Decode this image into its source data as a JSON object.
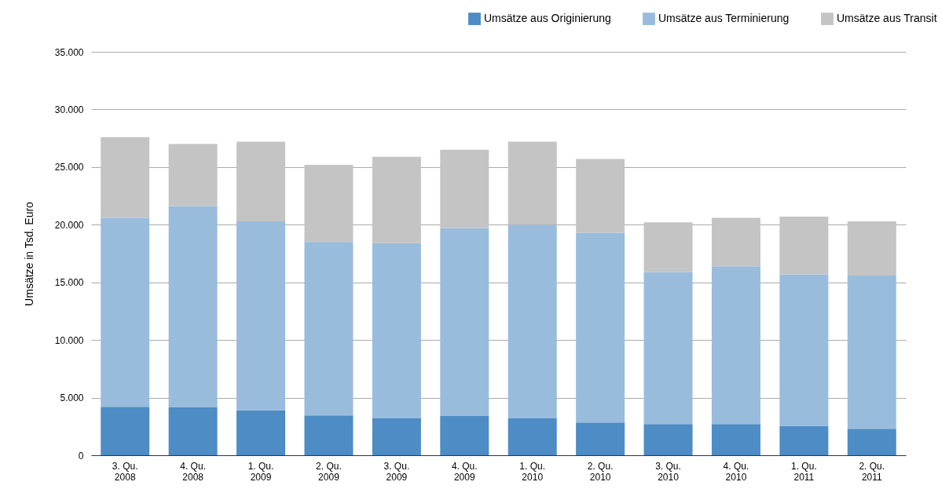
{
  "chart_data": {
    "type": "bar",
    "stacked": true,
    "ylabel": "Umsätze in Tsd. Euro",
    "categories": [
      "3. Qu. 2008",
      "4. Qu. 2008",
      "1. Qu. 2009",
      "2. Qu. 2009",
      "3. Qu. 2009",
      "4. Qu. 2009",
      "1. Qu. 2010",
      "2. Qu. 2010",
      "3. Qu. 2010",
      "4. Qu. 2010",
      "1. Qu. 2011",
      "2. Qu. 2011"
    ],
    "series": [
      {
        "name": "Umsätze aus Originierung",
        "color": "#4d8cc4",
        "values": [
          4200,
          4150,
          3900,
          3450,
          3200,
          3400,
          3200,
          2850,
          2700,
          2700,
          2550,
          2300
        ]
      },
      {
        "name": "Umsätze aus Terminierung",
        "color": "#99bcdd",
        "values": [
          16400,
          17450,
          16400,
          15050,
          15200,
          16300,
          16800,
          16450,
          13200,
          13700,
          13150,
          13300
        ]
      },
      {
        "name": "Umsätze aus Transit",
        "color": "#c4c4c4",
        "values": [
          7000,
          5400,
          6900,
          6700,
          7500,
          6800,
          7200,
          6400,
          4300,
          4200,
          5000,
          4700
        ]
      }
    ],
    "ylim": [
      0,
      35000
    ],
    "yticks": [
      0,
      {
        "value": 5000,
        "label": "5.000"
      },
      {
        "value": 10000,
        "label": "10.000"
      },
      {
        "value": 15000,
        "label": "15.000"
      },
      {
        "value": 20000,
        "label": "20.000"
      },
      {
        "value": 25000,
        "label": "25.000"
      },
      {
        "value": 30000,
        "label": "30.000"
      },
      {
        "value": 35000,
        "label": "35.000"
      }
    ],
    "grid": "y",
    "legend": "top right"
  }
}
